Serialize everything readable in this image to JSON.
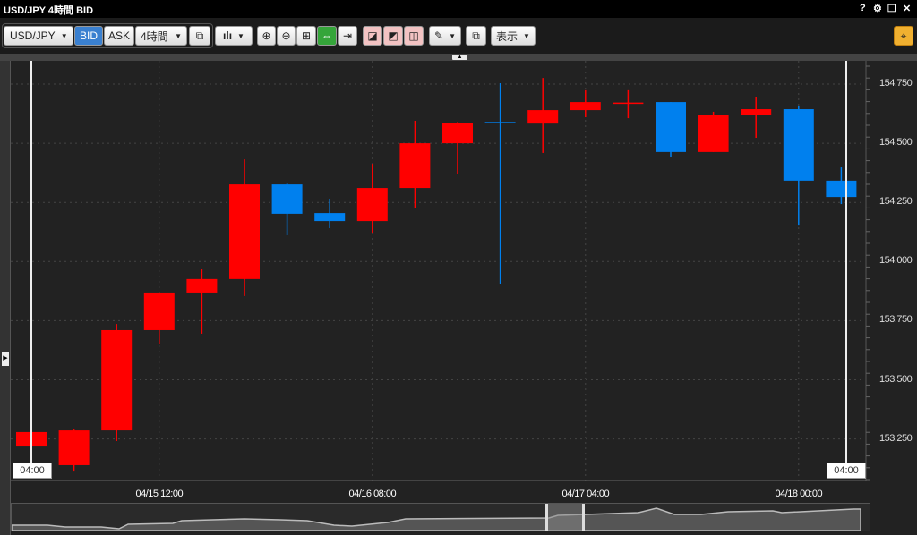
{
  "window": {
    "title": "USD/JPY 4時間 BID",
    "icons": [
      "help-icon",
      "gear-icon",
      "restore-icon",
      "close-icon"
    ],
    "help": "?",
    "close": "✕"
  },
  "toolbar": {
    "symbol": "USD/JPY",
    "bid": "BID",
    "ask": "ASK",
    "timeframe": "4時間",
    "display": "表示",
    "active_price": "BID"
  },
  "colors": {
    "up": "#ff0000",
    "down": "#0080ee",
    "background": "#222222",
    "accent": "#f0b030"
  },
  "chart_data": {
    "type": "candlestick",
    "ylim": [
      153.08,
      154.85
    ],
    "yticks": [
      "154.750",
      "154.500",
      "154.250",
      "154.000",
      "153.750",
      "153.500",
      "153.250"
    ],
    "ytick_values": [
      154.75,
      154.5,
      154.25,
      154.0,
      153.75,
      153.5,
      153.25
    ],
    "xticks": [
      {
        "index": 3,
        "label": "04/15 12:00"
      },
      {
        "index": 8,
        "label": "04/16 08:00"
      },
      {
        "index": 13,
        "label": "04/17 04:00"
      },
      {
        "index": 18,
        "label": "04/18 00:00"
      }
    ],
    "cursor_labels": [
      "04:00",
      "04:00"
    ],
    "grid": true,
    "candles": [
      {
        "o": 153.218,
        "h": 153.28,
        "l": 153.21,
        "c": 153.279
      },
      {
        "o": 153.139,
        "h": 153.29,
        "l": 153.112,
        "c": 153.286
      },
      {
        "o": 153.286,
        "h": 153.736,
        "l": 153.241,
        "c": 153.71
      },
      {
        "o": 153.71,
        "h": 153.87,
        "l": 153.653,
        "c": 153.869
      },
      {
        "o": 153.869,
        "h": 153.967,
        "l": 153.695,
        "c": 153.926
      },
      {
        "o": 153.926,
        "h": 154.432,
        "l": 153.854,
        "c": 154.326
      },
      {
        "o": 154.326,
        "h": 154.334,
        "l": 154.111,
        "c": 154.202
      },
      {
        "o": 154.205,
        "h": 154.266,
        "l": 154.141,
        "c": 154.171
      },
      {
        "o": 154.171,
        "h": 154.413,
        "l": 154.122,
        "c": 154.311
      },
      {
        "o": 154.311,
        "h": 154.595,
        "l": 154.228,
        "c": 154.5
      },
      {
        "o": 154.5,
        "h": 154.59,
        "l": 154.368,
        "c": 154.587
      },
      {
        "o": 154.59,
        "h": 154.754,
        "l": 153.903,
        "c": 154.588
      },
      {
        "o": 154.583,
        "h": 154.776,
        "l": 154.459,
        "c": 154.64
      },
      {
        "o": 154.64,
        "h": 154.724,
        "l": 154.61,
        "c": 154.674
      },
      {
        "o": 154.67,
        "h": 154.724,
        "l": 154.606,
        "c": 154.672
      },
      {
        "o": 154.674,
        "h": 154.674,
        "l": 154.44,
        "c": 154.463
      },
      {
        "o": 154.463,
        "h": 154.633,
        "l": 154.463,
        "c": 154.621
      },
      {
        "o": 154.62,
        "h": 154.697,
        "l": 154.523,
        "c": 154.644
      },
      {
        "o": 154.644,
        "h": 154.659,
        "l": 154.152,
        "c": 154.342
      },
      {
        "o": 154.342,
        "h": 154.398,
        "l": 154.243,
        "c": 154.273
      }
    ]
  }
}
